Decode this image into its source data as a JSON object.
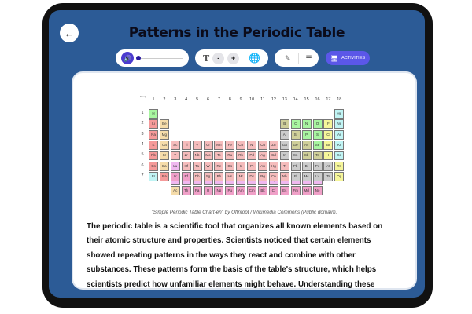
{
  "header": {
    "title": "Patterns in the Periodic Table",
    "back_icon": "arrow-left-icon"
  },
  "toolbar": {
    "audio": {
      "icon": "speaker-icon",
      "progress": 0
    },
    "text_size": {
      "icon": "text-size-icon",
      "decrease": "-",
      "increase": "+"
    },
    "language_icon": "globe-icon",
    "tools": {
      "highlight_icon": "pencil-icon",
      "list_icon": "list-icon"
    },
    "activities_label": "ACTIVITIES",
    "activities_icon": "monitor-icon"
  },
  "colors": {
    "screen": "#2c5b96",
    "accent": "#5b57e8",
    "audio": "#4c3ccf"
  },
  "figure": {
    "group_header": "Group",
    "period_header": "Period",
    "groups": [
      "1",
      "2",
      "3",
      "4",
      "5",
      "6",
      "7",
      "8",
      "9",
      "10",
      "11",
      "12",
      "13",
      "14",
      "15",
      "16",
      "17",
      "18"
    ],
    "periods": [
      "1",
      "2",
      "3",
      "4",
      "5",
      "6",
      "7"
    ],
    "symbols": [
      "H",
      "He",
      "Li",
      "Be",
      "B",
      "C",
      "N",
      "O",
      "F",
      "Ne",
      "Na",
      "Mg",
      "Al",
      "Si",
      "P",
      "S",
      "Cl",
      "Ar",
      "K",
      "Ca",
      "Sc",
      "Ti",
      "V",
      "Cr",
      "Mn",
      "Fe",
      "Co",
      "Ni",
      "Cu",
      "Zn",
      "Ga",
      "Ge",
      "As",
      "Se",
      "Br",
      "Kr",
      "Rb",
      "Sr",
      "Y",
      "Zr",
      "Nb",
      "Mo",
      "Tc",
      "Ru",
      "Rh",
      "Pd",
      "Ag",
      "Cd",
      "In",
      "Sn",
      "Sb",
      "Te",
      "I",
      "Xe",
      "Cs",
      "Ba",
      "La",
      "Ce",
      "Pr",
      "Nd",
      "Pm",
      "Sm",
      "Eu",
      "Gd",
      "Tb",
      "Dy",
      "Ho",
      "Er",
      "Tm",
      "Yb",
      "Lu",
      "Hf",
      "Ta",
      "W",
      "Re",
      "Os",
      "Ir",
      "Pt",
      "Au",
      "Hg",
      "Tl",
      "Pb",
      "Bi",
      "Po",
      "At",
      "Rn",
      "Fr",
      "Ra",
      "Ac",
      "Th",
      "Pa",
      "U",
      "Np",
      "Pu",
      "Am",
      "Cm",
      "Bk",
      "Cf",
      "Es",
      "Fm",
      "Md",
      "No",
      "Lr",
      "Rf",
      "Db",
      "Sg",
      "Bh",
      "Hs",
      "Mt",
      "Ds",
      "Rg",
      "Cn",
      "Nh",
      "Fl",
      "Mc",
      "Lv",
      "Ts",
      "Og"
    ],
    "categories": "ngaemnnnhgaepmnnhgaettttttttttpmmnhgaettttttttttppmmhgaelllllllllllllllttttttttttpppphgaeccccccccccccccctttttttttpppphg",
    "category_colors": {
      "n": "#a8f5a0",
      "g": "#c0f4f4",
      "a": "#f59a9a",
      "e": "#f5dcaa",
      "m": "#cfcf9a",
      "h": "#f5f59a",
      "p": "#cccccc",
      "t": "#f5bcbc",
      "l": "#f0b8f0",
      "c": "#f0a0c8"
    },
    "caption": "\"Simple Periodic Table Chart-en\" by Offnfopt / Wikimedia Commons (Public domain)."
  },
  "paragraph": [
    "The periodic table is a scientific tool that organizes all known elements based on",
    "their atomic structure and properties. Scientists noticed that certain elements",
    "showed repeating patterns in the ways they react and combine with other",
    "substances. These patterns form the basis of the table's structure, which helps",
    "scientists predict how unfamiliar elements might behave. Understanding these"
  ]
}
